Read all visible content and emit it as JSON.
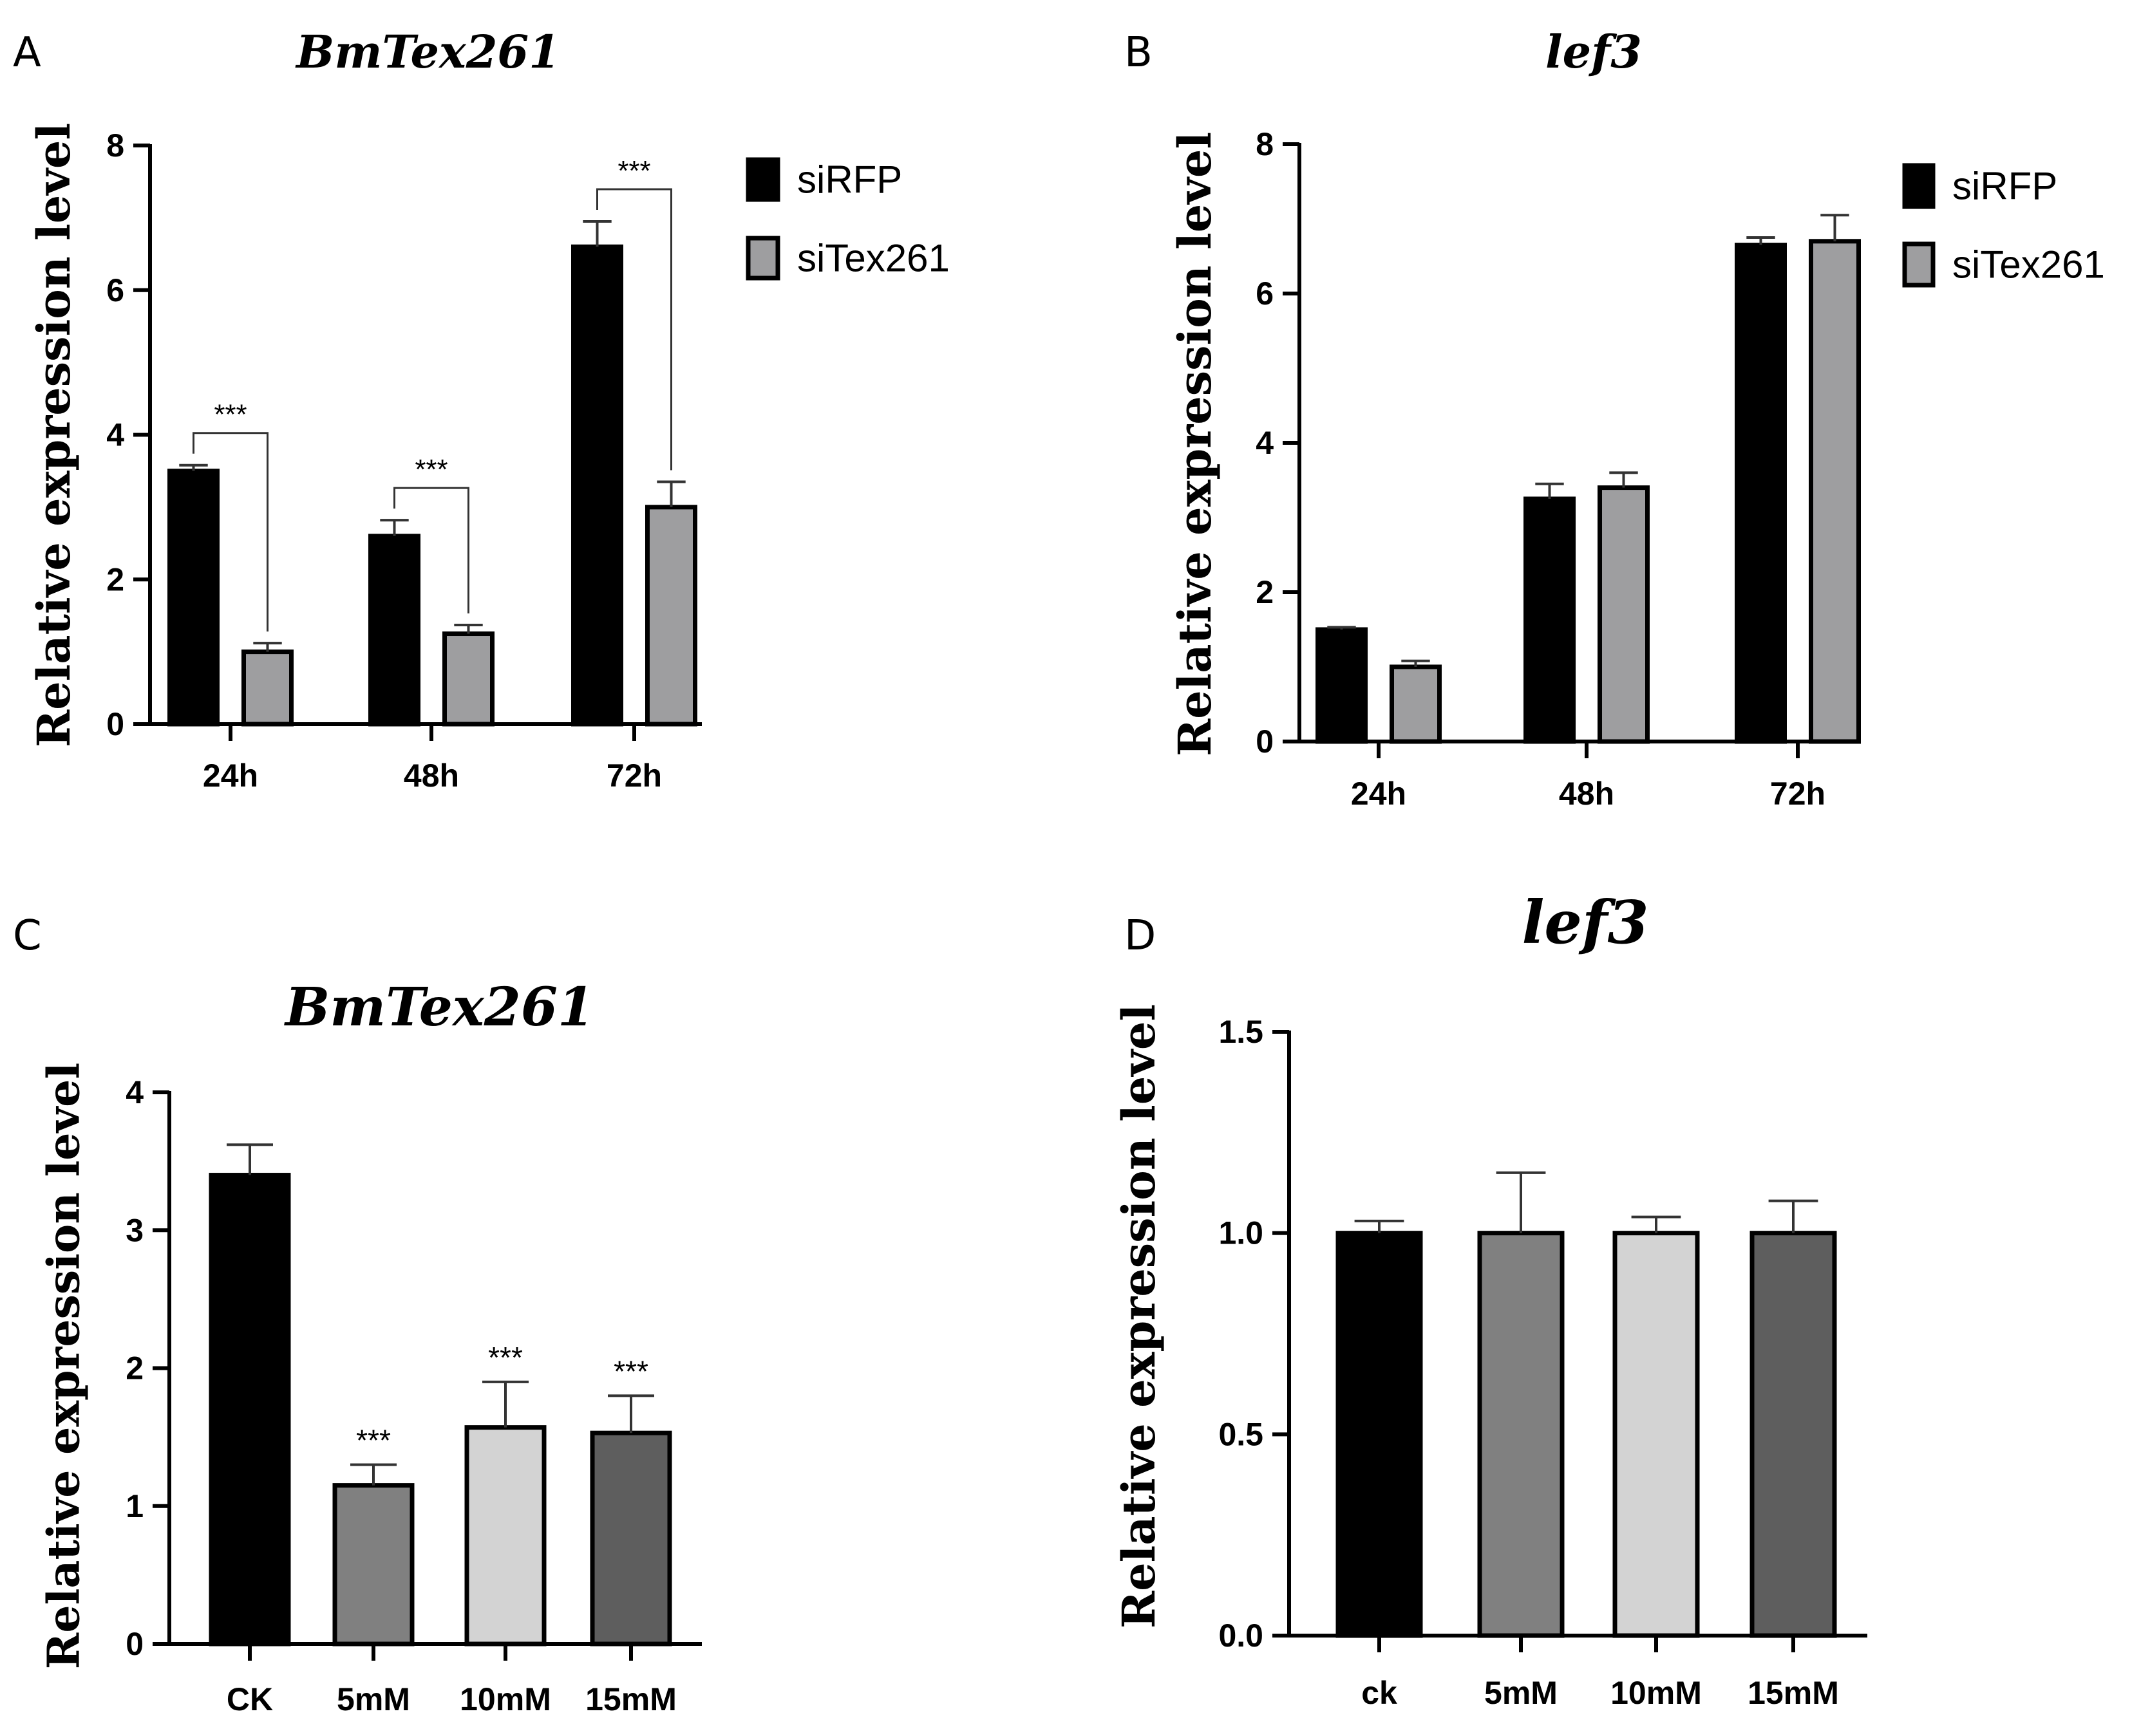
{
  "figure_labels": [
    "A",
    "B",
    "C",
    "D"
  ],
  "chart_data": [
    {
      "panel": "A",
      "type": "bar",
      "title": "BmTex261",
      "ylabel": "Relative expression level",
      "xlabel": "",
      "categories": [
        "24h",
        "48h",
        "72h"
      ],
      "ylim": [
        0,
        8
      ],
      "yticks": [
        "0",
        "2",
        "4",
        "6",
        "8"
      ],
      "series": [
        {
          "name": "siRFP",
          "color": "#000000",
          "values": [
            3.5,
            2.6,
            6.6
          ],
          "errors": [
            0.08,
            0.22,
            0.35
          ]
        },
        {
          "name": "siTex261",
          "color": "#9e9ea0",
          "values": [
            1.0,
            1.25,
            3.0
          ],
          "errors": [
            0.12,
            0.12,
            0.35
          ]
        }
      ],
      "significance": [
        {
          "category": "24h",
          "label": "***"
        },
        {
          "category": "48h",
          "label": "***"
        },
        {
          "category": "72h",
          "label": "***"
        }
      ],
      "legend": "right"
    },
    {
      "panel": "B",
      "type": "bar",
      "title": "lef3",
      "ylabel": "Relative expression level",
      "xlabel": "",
      "categories": [
        "24h",
        "48h",
        "72h"
      ],
      "ylim": [
        0,
        8
      ],
      "yticks": [
        "0",
        "2",
        "4",
        "6",
        "8"
      ],
      "series": [
        {
          "name": "siRFP",
          "color": "#000000",
          "values": [
            1.5,
            3.25,
            6.65
          ],
          "errors": [
            0.03,
            0.2,
            0.1
          ]
        },
        {
          "name": "siTex261",
          "color": "#9e9ea0",
          "values": [
            1.0,
            3.4,
            6.7
          ],
          "errors": [
            0.08,
            0.2,
            0.35
          ]
        }
      ],
      "legend": "right"
    },
    {
      "panel": "C",
      "type": "bar",
      "title": "BmTex261",
      "ylabel": "Relative expression level",
      "xlabel": "",
      "categories": [
        "CK",
        "5mM",
        "10mM",
        "15mM"
      ],
      "ylim": [
        0,
        4
      ],
      "yticks": [
        "0",
        "1",
        "2",
        "3",
        "4"
      ],
      "colors": [
        "#000000",
        "#808080",
        "#d3d3d3",
        "#5e5e5e"
      ],
      "values": [
        3.4,
        1.15,
        1.57,
        1.53
      ],
      "errors": [
        0.22,
        0.15,
        0.33,
        0.27
      ],
      "significance_labels": [
        "",
        "***",
        "***",
        "***"
      ]
    },
    {
      "panel": "D",
      "type": "bar",
      "title": "lef3",
      "ylabel": "Relative expression level",
      "xlabel": "",
      "categories": [
        "ck",
        "5mM",
        "10mM",
        "15mM"
      ],
      "ylim": [
        0,
        1.5
      ],
      "yticks": [
        "0.0",
        "0.5",
        "1.0",
        "1.5"
      ],
      "colors": [
        "#000000",
        "#808080",
        "#d3d3d3",
        "#5e5e5e"
      ],
      "values": [
        1.0,
        1.0,
        1.0,
        1.0
      ],
      "errors": [
        0.03,
        0.15,
        0.04,
        0.08
      ]
    }
  ]
}
